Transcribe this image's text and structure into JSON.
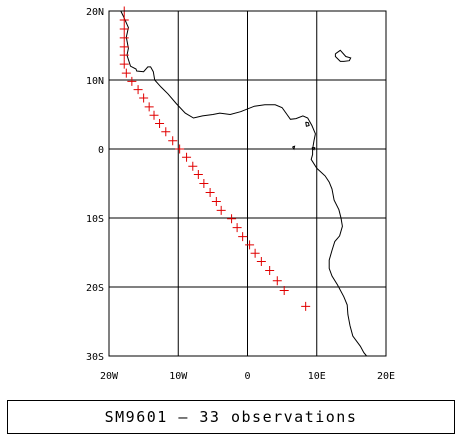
{
  "chart_data": {
    "type": "scatter",
    "title": "",
    "xlabel": "",
    "ylabel": "",
    "xlim": [
      -20,
      20
    ],
    "ylim": [
      -30,
      20
    ],
    "grid": true,
    "x_ticks": [
      {
        "value": -20,
        "label": "20W"
      },
      {
        "value": -10,
        "label": "10W"
      },
      {
        "value": 0,
        "label": "0"
      },
      {
        "value": 10,
        "label": "10E"
      },
      {
        "value": 20,
        "label": "20E"
      }
    ],
    "y_ticks": [
      {
        "value": 20,
        "label": "20N"
      },
      {
        "value": 10,
        "label": "10N"
      },
      {
        "value": 0,
        "label": "0"
      },
      {
        "value": -10,
        "label": "10S"
      },
      {
        "value": -20,
        "label": "20S"
      },
      {
        "value": -30,
        "label": "30S"
      }
    ],
    "marker_color": "#e00000",
    "marker": "plus",
    "series": [
      {
        "points": [
          [
            -17.8,
            20.0
          ],
          [
            -17.8,
            18.7
          ],
          [
            -17.8,
            17.4
          ],
          [
            -17.8,
            16.1
          ],
          [
            -17.8,
            14.8
          ],
          [
            -17.8,
            13.6
          ],
          [
            -17.8,
            12.3
          ],
          [
            -17.5,
            11.0
          ],
          [
            -16.7,
            9.8
          ],
          [
            -15.8,
            8.6
          ],
          [
            -15.0,
            7.4
          ],
          [
            -14.2,
            6.1
          ],
          [
            -13.5,
            4.9
          ],
          [
            -12.7,
            3.7
          ],
          [
            -11.8,
            2.5
          ],
          [
            -10.8,
            1.2
          ],
          [
            -9.8,
            0.0
          ],
          [
            -8.8,
            -1.2
          ],
          [
            -7.9,
            -2.5
          ],
          [
            -7.1,
            -3.7
          ],
          [
            -6.3,
            -5.0
          ],
          [
            -5.4,
            -6.3
          ],
          [
            -4.5,
            -7.6
          ],
          [
            -3.8,
            -8.9
          ],
          [
            -2.3,
            -10.1
          ],
          [
            -1.5,
            -11.4
          ],
          [
            -0.7,
            -12.7
          ],
          [
            0.3,
            -13.9
          ],
          [
            1.1,
            -15.1
          ],
          [
            2.0,
            -16.3
          ],
          [
            3.2,
            -17.6
          ],
          [
            4.3,
            -19.1
          ],
          [
            5.3,
            -20.5
          ]
        ]
      }
    ],
    "extra_point": [
      8.4,
      -22.8
    ],
    "coastline_color": "#000000",
    "coastline": [
      [
        -18.3,
        20.0
      ],
      [
        -17.9,
        19.2
      ],
      [
        -17.2,
        17.6
      ],
      [
        -17.5,
        16.2
      ],
      [
        -17.2,
        14.6
      ],
      [
        -17.4,
        13.6
      ],
      [
        -16.9,
        12.0
      ],
      [
        -16.1,
        11.6
      ],
      [
        -16.0,
        11.3
      ],
      [
        -15.0,
        11.2
      ],
      [
        -14.4,
        11.9
      ],
      [
        -14.0,
        11.9
      ],
      [
        -13.6,
        11.2
      ],
      [
        -13.4,
        10.0
      ],
      [
        -12.5,
        9.0
      ],
      [
        -11.5,
        8.0
      ],
      [
        -10.3,
        6.6
      ],
      [
        -9.0,
        5.2
      ],
      [
        -7.8,
        4.5
      ],
      [
        -6.5,
        4.8
      ],
      [
        -5.0,
        5.0
      ],
      [
        -4.0,
        5.2
      ],
      [
        -2.5,
        5.0
      ],
      [
        -1.0,
        5.4
      ],
      [
        1.0,
        6.2
      ],
      [
        2.5,
        6.4
      ],
      [
        4.0,
        6.4
      ],
      [
        5.0,
        6.0
      ],
      [
        5.7,
        5.0
      ],
      [
        6.2,
        4.3
      ],
      [
        7.0,
        4.4
      ],
      [
        8.0,
        4.8
      ],
      [
        8.7,
        4.5
      ],
      [
        9.3,
        3.4
      ],
      [
        9.8,
        2.2
      ],
      [
        9.6,
        1.2
      ],
      [
        9.4,
        0.0
      ],
      [
        9.4,
        -0.8
      ],
      [
        9.2,
        -1.5
      ],
      [
        10.0,
        -2.8
      ],
      [
        11.2,
        -3.9
      ],
      [
        11.8,
        -4.8
      ],
      [
        12.2,
        -5.8
      ],
      [
        12.5,
        -7.4
      ],
      [
        13.2,
        -8.8
      ],
      [
        13.5,
        -10.0
      ],
      [
        13.7,
        -11.2
      ],
      [
        13.3,
        -12.6
      ],
      [
        12.6,
        -13.4
      ],
      [
        12.2,
        -14.7
      ],
      [
        11.8,
        -16.1
      ],
      [
        11.8,
        -17.3
      ],
      [
        12.2,
        -18.4
      ],
      [
        13.0,
        -19.7
      ],
      [
        13.9,
        -21.4
      ],
      [
        14.4,
        -22.6
      ],
      [
        14.5,
        -24.0
      ],
      [
        14.8,
        -25.6
      ],
      [
        15.2,
        -27.1
      ],
      [
        16.3,
        -28.6
      ],
      [
        16.8,
        -29.5
      ],
      [
        17.2,
        -30.0
      ]
    ],
    "islands": [
      [
        [
          12.7,
          13.8
        ],
        [
          13.4,
          14.3
        ],
        [
          14.2,
          13.4
        ],
        [
          14.9,
          13.2
        ],
        [
          14.7,
          12.8
        ],
        [
          13.9,
          12.7
        ],
        [
          13.4,
          12.7
        ],
        [
          12.7,
          13.4
        ],
        [
          12.7,
          13.8
        ]
      ],
      [
        [
          8.4,
          3.9
        ],
        [
          8.8,
          3.8
        ],
        [
          8.9,
          3.4
        ],
        [
          8.5,
          3.3
        ],
        [
          8.4,
          3.9
        ]
      ],
      [
        [
          6.5,
          0.3
        ],
        [
          6.8,
          0.4
        ],
        [
          6.7,
          0.0
        ],
        [
          6.5,
          0.3
        ]
      ],
      [
        [
          9.3,
          0.2
        ],
        [
          9.7,
          0.2
        ],
        [
          9.6,
          -0.1
        ],
        [
          9.3,
          0.2
        ]
      ]
    ],
    "caption": "SM9601 – 33 observations"
  }
}
